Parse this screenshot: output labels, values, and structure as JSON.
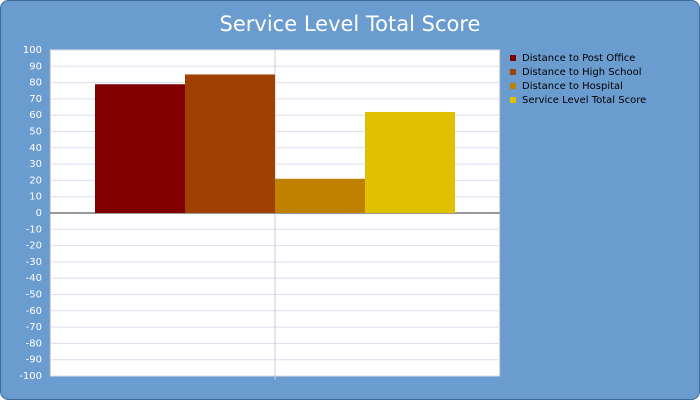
{
  "chart_data": {
    "type": "bar",
    "title": "Service Level Total Score",
    "categories": [
      null
    ],
    "series": [
      {
        "name": "Distance to Post Office",
        "color": "#800000",
        "values": [
          79
        ]
      },
      {
        "name": "Distance to High School",
        "color": "#a04000",
        "values": [
          85
        ]
      },
      {
        "name": "Distance to Hospital",
        "color": "#c08000",
        "values": [
          21
        ]
      },
      {
        "name": "Service Level Total Score",
        "color": "#e0c000",
        "values": [
          62
        ]
      }
    ],
    "ylim": [
      -100,
      100
    ],
    "yticks": [
      -100,
      -90,
      -80,
      -70,
      -60,
      -50,
      -40,
      -30,
      -20,
      -10,
      0,
      10,
      20,
      30,
      40,
      50,
      60,
      70,
      80,
      90,
      100
    ],
    "grid": true,
    "legend": "right"
  }
}
